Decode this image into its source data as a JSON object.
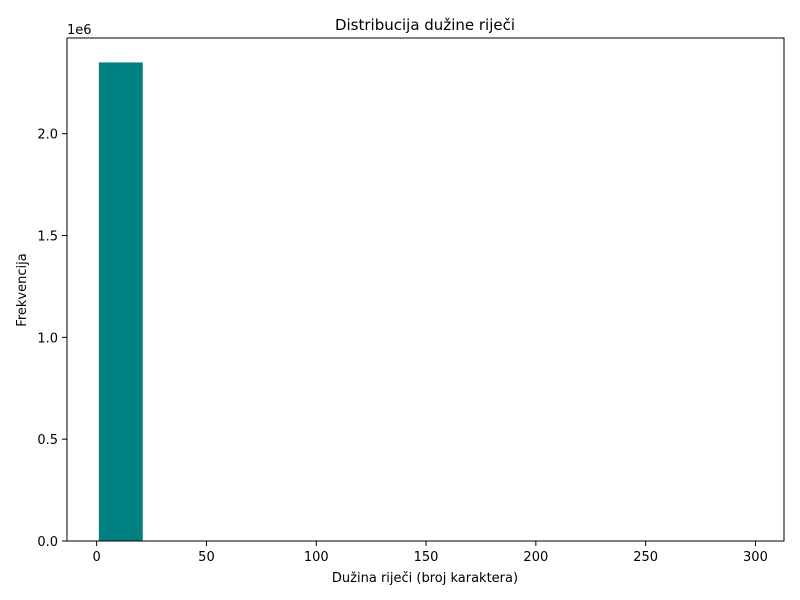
{
  "chart_data": {
    "type": "bar",
    "title": "Distribucija dužine riječi",
    "xlabel": "Dužina riječi (broj karaktera)",
    "ylabel": "Frekvencija",
    "y_offset_label": "1e6",
    "xlim": [
      -13.5,
      313
    ],
    "ylim": [
      0,
      2.47
    ],
    "x_ticks": [
      0,
      50,
      100,
      150,
      200,
      250,
      300
    ],
    "x_tick_labels": [
      "0",
      "50",
      "100",
      "150",
      "200",
      "250",
      "300"
    ],
    "y_ticks": [
      0,
      0.5,
      1.0,
      1.5,
      2.0
    ],
    "y_tick_labels": [
      "0.0",
      "0.5",
      "1.0",
      "1.5",
      "2.0"
    ],
    "y_scale_note": "values in units of 1e6",
    "grid": false,
    "bar_color": "#008080",
    "bins": [
      {
        "x0": 1,
        "x1": 21,
        "value": 2.35
      }
    ]
  }
}
